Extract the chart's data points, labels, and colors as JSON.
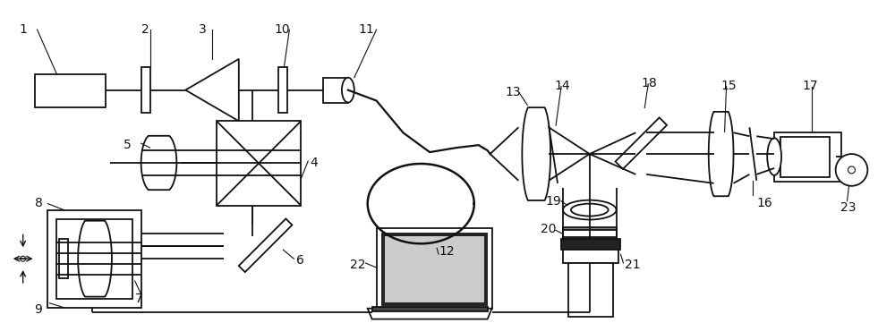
{
  "bg_color": "#ffffff",
  "line_color": "#111111",
  "label_color": "#111111",
  "label_fontsize": 10,
  "figsize": [
    10.0,
    3.61
  ],
  "dpi": 100
}
